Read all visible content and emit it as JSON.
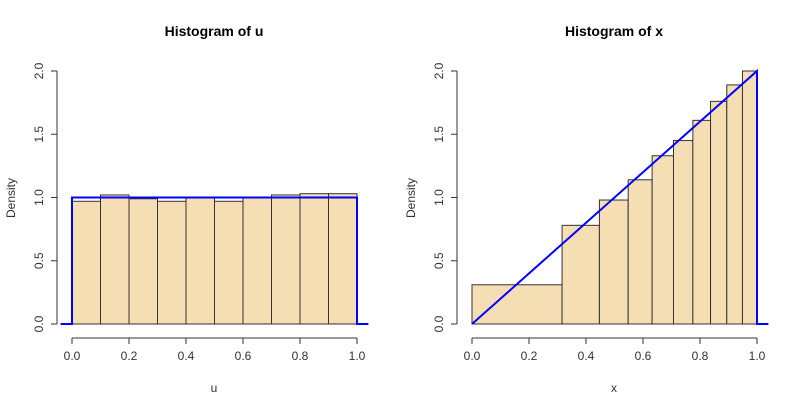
{
  "chart_data": [
    {
      "type": "bar",
      "title": "Histogram of u",
      "xlabel": "u",
      "ylabel": "Density",
      "xlim": [
        0,
        1
      ],
      "ylim": [
        0,
        2
      ],
      "xticks": [
        "0.0",
        "0.2",
        "0.4",
        "0.6",
        "0.8",
        "1.0"
      ],
      "yticks": [
        "0.0",
        "0.5",
        "1.0",
        "1.5",
        "2.0"
      ],
      "bins": [
        {
          "start": 0.0,
          "end": 0.1,
          "density": 0.97
        },
        {
          "start": 0.1,
          "end": 0.2,
          "density": 1.02
        },
        {
          "start": 0.2,
          "end": 0.3,
          "density": 0.99
        },
        {
          "start": 0.3,
          "end": 0.4,
          "density": 0.97
        },
        {
          "start": 0.4,
          "end": 0.5,
          "density": 1.0
        },
        {
          "start": 0.5,
          "end": 0.6,
          "density": 0.97
        },
        {
          "start": 0.6,
          "end": 0.7,
          "density": 1.0
        },
        {
          "start": 0.7,
          "end": 0.8,
          "density": 1.02
        },
        {
          "start": 0.8,
          "end": 0.9,
          "density": 1.03
        },
        {
          "start": 0.9,
          "end": 1.0,
          "density": 1.03
        }
      ],
      "density_line": {
        "color": "#0000ff",
        "points": [
          [
            -0.04,
            0
          ],
          [
            0.0,
            0
          ],
          [
            0.0,
            1.0
          ],
          [
            1.0,
            1.0
          ],
          [
            1.0,
            0
          ],
          [
            1.04,
            0
          ]
        ]
      },
      "bar_color": "#f5deb3"
    },
    {
      "type": "bar",
      "title": "Histogram of x",
      "xlabel": "x",
      "ylabel": "Density",
      "xlim": [
        0,
        1
      ],
      "ylim": [
        0,
        2
      ],
      "xticks": [
        "0.0",
        "0.2",
        "0.4",
        "0.6",
        "0.8",
        "1.0"
      ],
      "yticks": [
        "0.0",
        "0.5",
        "1.0",
        "1.5",
        "2.0"
      ],
      "bins": [
        {
          "start": 0.0,
          "end": 0.316,
          "density": 0.31
        },
        {
          "start": 0.316,
          "end": 0.447,
          "density": 0.78
        },
        {
          "start": 0.447,
          "end": 0.548,
          "density": 0.98
        },
        {
          "start": 0.548,
          "end": 0.632,
          "density": 1.14
        },
        {
          "start": 0.632,
          "end": 0.707,
          "density": 1.33
        },
        {
          "start": 0.707,
          "end": 0.775,
          "density": 1.45
        },
        {
          "start": 0.775,
          "end": 0.837,
          "density": 1.61
        },
        {
          "start": 0.837,
          "end": 0.894,
          "density": 1.76
        },
        {
          "start": 0.894,
          "end": 0.949,
          "density": 1.89
        },
        {
          "start": 0.949,
          "end": 1.0,
          "density": 2.0
        }
      ],
      "density_line": {
        "color": "#0000ff",
        "points": [
          [
            0.0,
            0.0
          ],
          [
            1.0,
            2.0
          ],
          [
            1.0,
            0
          ],
          [
            1.04,
            0
          ]
        ]
      },
      "bar_color": "#f5deb3"
    }
  ]
}
